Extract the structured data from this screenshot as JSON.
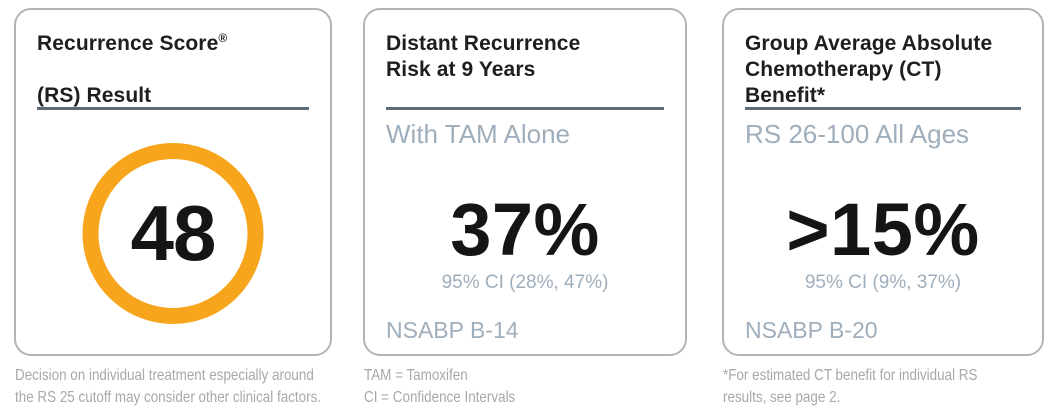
{
  "colors": {
    "accent_orange": "#F7A51D",
    "divider_slate": "#5E6C79",
    "bluegray_text": "#9FAEBC",
    "footnote_gray": "#A6A8AB",
    "title_black": "#1E1E1E",
    "card_border": "#B2B5B7"
  },
  "cards": [
    {
      "title_line1": "Recurrence Score",
      "title_reg": "®",
      "title_line2": "(RS) Result",
      "score": "48",
      "footnote": "Decision on individual treatment especially around\nthe RS 25 cutoff may consider other clinical factors."
    },
    {
      "title": "Distant Recurrence\nRisk at 9 Years",
      "subtitle": "With TAM Alone",
      "value": "37%",
      "ci": "95% CI (28%, 47%)",
      "study": "NSABP B-14",
      "footnote": "TAM = Tamoxifen\nCI = Confidence Intervals"
    },
    {
      "title": "Group Average Absolute\nChemotherapy (CT)\nBenefit*",
      "subtitle": "RS 26-100 All Ages",
      "value": ">15%",
      "ci": "95% CI (9%, 37%)",
      "study": "NSABP B-20",
      "footnote": "*For estimated CT benefit for individual RS\nresults, see page 2."
    }
  ]
}
